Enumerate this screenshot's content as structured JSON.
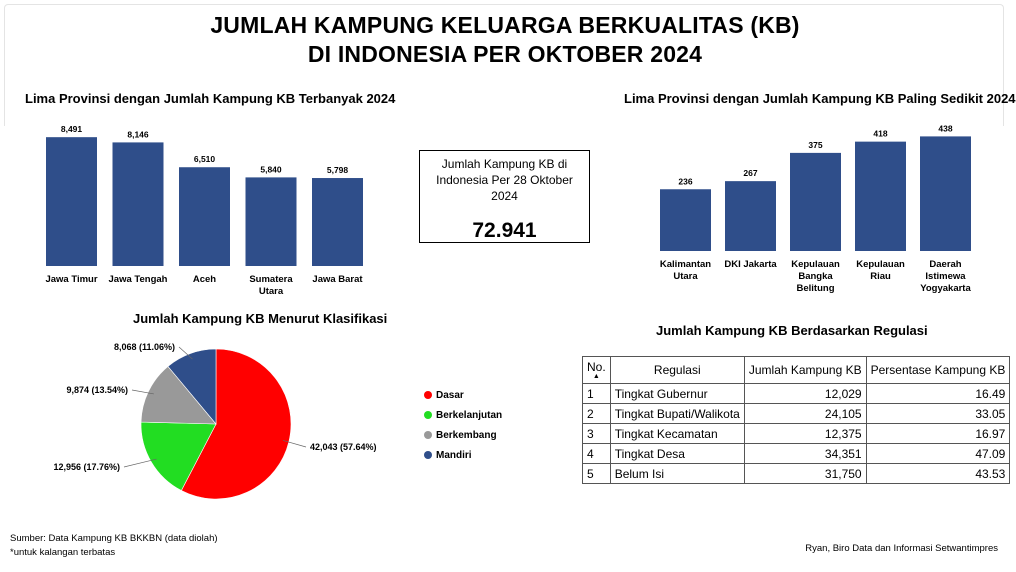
{
  "title": {
    "line1": "JUMLAH KAMPUNG KELUARGA BERKUALITAS (KB)",
    "line2": "DI INDONESIA PER OKTOBER 2024"
  },
  "summary": {
    "label": "Jumlah Kampung KB di Indonesia Per 28 Oktober 2024",
    "value": "72.941"
  },
  "sources": {
    "line1": "Sumber: Data Kampung KB BKKBN (data diolah)",
    "line2": "*untuk kalangan terbatas",
    "credit": "Ryan, Biro Data dan Informasi Setwantimpres"
  },
  "colors": {
    "bar": "#2f4e8a",
    "dasar": "#ff0000",
    "berkelanjutan": "#22dd22",
    "berkembang": "#999999",
    "mandiri": "#2f4e8a"
  },
  "chart_data": [
    {
      "type": "bar",
      "title": "Lima Provinsi dengan Jumlah Kampung KB Terbanyak 2024",
      "categories": [
        [
          "Jawa Timur"
        ],
        [
          "Jawa Tengah"
        ],
        [
          "Aceh"
        ],
        [
          "Sumatera",
          "Utara"
        ],
        [
          "Jawa Barat"
        ]
      ],
      "values": [
        8491,
        8146,
        6510,
        5840,
        5798
      ],
      "value_labels": [
        "8,491",
        "8,146",
        "6,510",
        "5,840",
        "5,798"
      ],
      "ylim": [
        0,
        8700
      ]
    },
    {
      "type": "bar",
      "title": "Lima Provinsi dengan Jumlah Kampung KB Paling Sedikit 2024",
      "categories": [
        [
          "Kalimantan",
          "Utara"
        ],
        [
          "DKI Jakarta"
        ],
        [
          "Kepulauan",
          "Bangka",
          "Belitung"
        ],
        [
          "Kepulauan",
          "Riau"
        ],
        [
          "Daerah",
          "Istimewa",
          "Yogyakarta"
        ]
      ],
      "values": [
        236,
        267,
        375,
        418,
        438
      ],
      "value_labels": [
        "236",
        "267",
        "375",
        "418",
        "438"
      ],
      "ylim": [
        0,
        451
      ]
    },
    {
      "type": "pie",
      "title": "Jumlah Kampung KB Menurut Klasifikasi",
      "categories": [
        "Dasar",
        "Berkelanjutan",
        "Berkembang",
        "Mandiri"
      ],
      "values": [
        42043,
        12956,
        9874,
        8068
      ],
      "percent": [
        57.64,
        17.76,
        13.54,
        11.06
      ],
      "slice_labels": [
        "42,043 (57.64%)",
        "12,956 (17.76%)",
        "9,874 (13.54%)",
        "8,068 (11.06%)"
      ],
      "legend": "right"
    },
    {
      "type": "table",
      "title": "Jumlah Kampung KB Berdasarkan Regulasi",
      "columns": [
        "No.",
        "Regulasi",
        "Jumlah Kampung KB",
        "Persentase Kampung KB"
      ],
      "rows": [
        [
          "1",
          "Tingkat Gubernur",
          "12,029",
          "16.49"
        ],
        [
          "2",
          "Tingkat Bupati/Walikota",
          "24,105",
          "33.05"
        ],
        [
          "3",
          "Tingkat Kecamatan",
          "12,375",
          "16.97"
        ],
        [
          "4",
          "Tingkat Desa",
          "34,351",
          "47.09"
        ],
        [
          "5",
          "Belum Isi",
          "31,750",
          "43.53"
        ]
      ]
    }
  ]
}
